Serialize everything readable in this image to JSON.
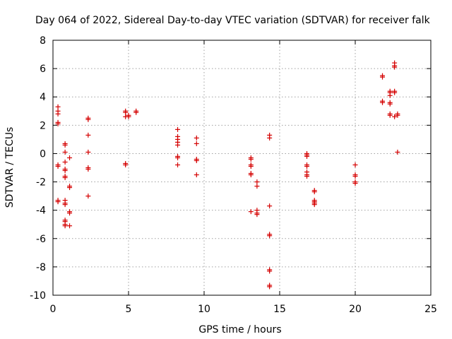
{
  "chart_data": {
    "type": "scatter",
    "title": "Day 064 of 2022, Sidereal Day-to-day VTEC variation (SDTVAR) for receiver falk",
    "xlabel": "GPS time / hours",
    "ylabel": "SDTVAR / TECUs",
    "xlim": [
      0,
      25
    ],
    "ylim": [
      -10,
      8
    ],
    "xticks": [
      0,
      5,
      10,
      15,
      20,
      25
    ],
    "yticks": [
      -10,
      -8,
      -6,
      -4,
      -2,
      0,
      2,
      4,
      6,
      8
    ],
    "grid": true,
    "marker": "+",
    "marker_color": "#d40000",
    "series": [
      {
        "name": "falk",
        "points": [
          [
            0.33,
            3.3
          ],
          [
            0.33,
            3.0
          ],
          [
            0.33,
            2.8
          ],
          [
            0.33,
            2.2
          ],
          [
            0.33,
            2.1
          ],
          [
            0.33,
            -0.8
          ],
          [
            0.33,
            -0.9
          ],
          [
            0.33,
            -3.3
          ],
          [
            0.33,
            -3.4
          ],
          [
            0.8,
            0.7
          ],
          [
            0.8,
            0.6
          ],
          [
            0.8,
            0.1
          ],
          [
            0.8,
            -0.6
          ],
          [
            0.8,
            -1.1
          ],
          [
            0.8,
            -1.2
          ],
          [
            0.8,
            -1.6
          ],
          [
            0.8,
            -1.7
          ],
          [
            0.8,
            -3.3
          ],
          [
            0.8,
            -3.5
          ],
          [
            0.8,
            -3.6
          ],
          [
            0.8,
            -4.7
          ],
          [
            0.8,
            -4.8
          ],
          [
            0.8,
            -5.0
          ],
          [
            0.8,
            -5.1
          ],
          [
            1.1,
            -0.3
          ],
          [
            1.1,
            -2.3
          ],
          [
            1.1,
            -2.4
          ],
          [
            1.1,
            -4.1
          ],
          [
            1.1,
            -4.2
          ],
          [
            1.1,
            -5.1
          ],
          [
            2.33,
            2.5
          ],
          [
            2.33,
            2.4
          ],
          [
            2.33,
            1.3
          ],
          [
            2.33,
            0.1
          ],
          [
            2.33,
            -1.0
          ],
          [
            2.33,
            -1.1
          ],
          [
            2.33,
            -3.0
          ],
          [
            4.8,
            3.0
          ],
          [
            4.8,
            2.9
          ],
          [
            4.8,
            2.6
          ],
          [
            4.8,
            -0.7
          ],
          [
            4.8,
            -0.8
          ],
          [
            5.0,
            2.6
          ],
          [
            5.0,
            2.7
          ],
          [
            5.5,
            3.0
          ],
          [
            5.5,
            2.9
          ],
          [
            8.25,
            1.7
          ],
          [
            8.25,
            1.2
          ],
          [
            8.25,
            1.0
          ],
          [
            8.25,
            0.8
          ],
          [
            8.25,
            0.6
          ],
          [
            8.25,
            -0.2
          ],
          [
            8.25,
            -0.3
          ],
          [
            8.25,
            -0.8
          ],
          [
            9.5,
            1.1
          ],
          [
            9.5,
            0.7
          ],
          [
            9.5,
            -0.4
          ],
          [
            9.5,
            -0.5
          ],
          [
            9.5,
            -1.5
          ],
          [
            13.1,
            -0.3
          ],
          [
            13.1,
            -0.4
          ],
          [
            13.1,
            -0.8
          ],
          [
            13.1,
            -0.9
          ],
          [
            13.1,
            -1.4
          ],
          [
            13.1,
            -1.5
          ],
          [
            13.1,
            -4.1
          ],
          [
            13.5,
            -2.0
          ],
          [
            13.5,
            -2.3
          ],
          [
            13.5,
            -4.0
          ],
          [
            13.5,
            -4.2
          ],
          [
            13.5,
            -4.3
          ],
          [
            14.33,
            1.3
          ],
          [
            14.33,
            1.1
          ],
          [
            14.33,
            -3.7
          ],
          [
            14.33,
            -5.7
          ],
          [
            14.33,
            -5.8
          ],
          [
            14.33,
            -8.2
          ],
          [
            14.33,
            -8.3
          ],
          [
            14.33,
            -9.3
          ],
          [
            14.33,
            -9.4
          ],
          [
            16.8,
            0.0
          ],
          [
            16.8,
            -0.1
          ],
          [
            16.8,
            -0.2
          ],
          [
            16.8,
            -0.8
          ],
          [
            16.8,
            -0.9
          ],
          [
            16.8,
            -1.3
          ],
          [
            16.8,
            -1.5
          ],
          [
            16.8,
            -1.6
          ],
          [
            17.3,
            -2.6
          ],
          [
            17.3,
            -2.7
          ],
          [
            17.3,
            -3.3
          ],
          [
            17.3,
            -3.4
          ],
          [
            17.3,
            -3.5
          ],
          [
            17.3,
            -3.6
          ],
          [
            20.0,
            -0.8
          ],
          [
            20.0,
            -1.5
          ],
          [
            20.0,
            -1.6
          ],
          [
            20.0,
            -2.0
          ],
          [
            20.0,
            -2.1
          ],
          [
            21.8,
            5.5
          ],
          [
            21.8,
            5.4
          ],
          [
            21.8,
            3.7
          ],
          [
            21.8,
            3.6
          ],
          [
            22.3,
            4.4
          ],
          [
            22.3,
            4.3
          ],
          [
            22.3,
            4.1
          ],
          [
            22.3,
            3.6
          ],
          [
            22.3,
            3.5
          ],
          [
            22.3,
            2.8
          ],
          [
            22.3,
            2.7
          ],
          [
            22.6,
            6.4
          ],
          [
            22.6,
            6.2
          ],
          [
            22.6,
            6.1
          ],
          [
            22.6,
            4.4
          ],
          [
            22.6,
            4.3
          ],
          [
            22.6,
            2.6
          ],
          [
            22.8,
            2.8
          ],
          [
            22.8,
            2.7
          ],
          [
            22.8,
            0.1
          ]
        ]
      }
    ]
  }
}
